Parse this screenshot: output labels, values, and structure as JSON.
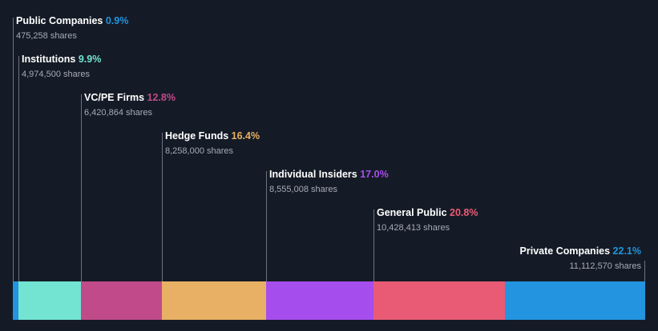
{
  "chart_data": {
    "type": "bar",
    "orientation": "horizontal-stacked",
    "unit": "shares",
    "segments": [
      {
        "name": "Public Companies",
        "percent": 0.9,
        "percent_label": "0.9%",
        "shares": 475258,
        "shares_label": "475,258 shares",
        "color": "#2394df"
      },
      {
        "name": "Institutions",
        "percent": 9.9,
        "percent_label": "9.9%",
        "shares": 4974500,
        "shares_label": "4,974,500 shares",
        "color": "#73e4d2"
      },
      {
        "name": "VC/PE Firms",
        "percent": 12.8,
        "percent_label": "12.8%",
        "shares": 6420864,
        "shares_label": "6,420,864 shares",
        "color": "#c04a8a"
      },
      {
        "name": "Hedge Funds",
        "percent": 16.4,
        "percent_label": "16.4%",
        "shares": 8258000,
        "shares_label": "8,258,000 shares",
        "color": "#e7b064"
      },
      {
        "name": "Individual Insiders",
        "percent": 17.0,
        "percent_label": "17.0%",
        "shares": 8555008,
        "shares_label": "8,555,008 shares",
        "color": "#a64ded"
      },
      {
        "name": "General Public",
        "percent": 20.8,
        "percent_label": "20.8%",
        "shares": 10428413,
        "shares_label": "10,428,413 shares",
        "color": "#e95b74"
      },
      {
        "name": "Private Companies",
        "percent": 22.1,
        "percent_label": "22.1%",
        "shares": 11112570,
        "shares_label": "11,112,570 shares",
        "color": "#2394df"
      }
    ]
  }
}
